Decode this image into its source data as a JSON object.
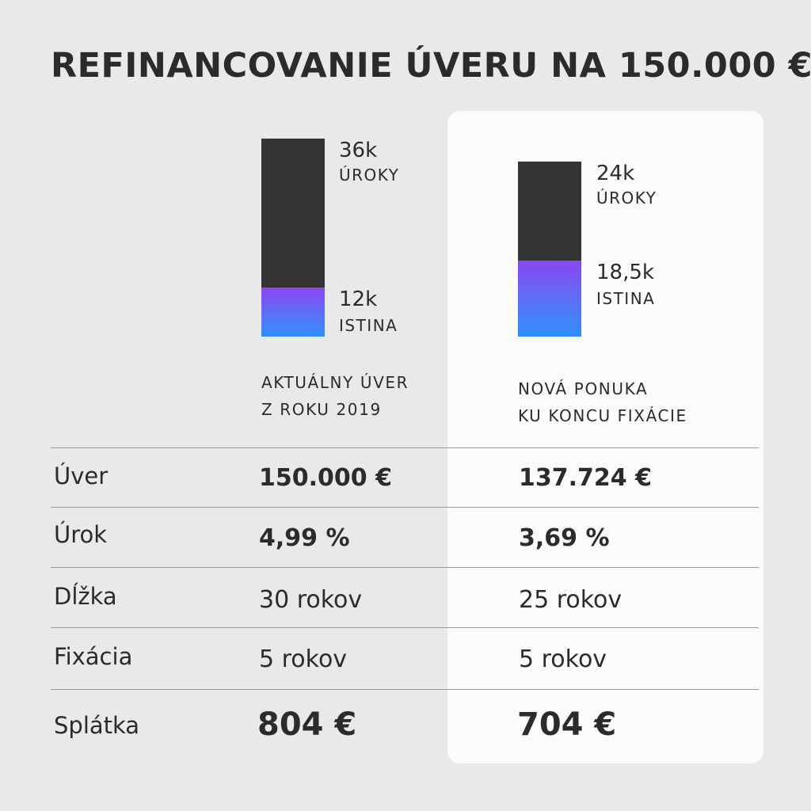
{
  "title": "REFINANCOVANIE ÚVERU NA 150.000 €",
  "chart_data": {
    "type": "bar",
    "stacked": true,
    "categories": [
      "AKTUÁLNY ÚVER Z ROKU 2019",
      "NOVÁ PONUKA KU KONCU FIXÁCIE"
    ],
    "series": [
      {
        "name": "ISTINA",
        "values": [
          12,
          18.5
        ],
        "labels": [
          "12k",
          "18,5k"
        ],
        "color": "#5a72f7"
      },
      {
        "name": "ÚROKY",
        "values": [
          36,
          24
        ],
        "labels": [
          "36k",
          "24k"
        ],
        "color": "#333234"
      }
    ]
  },
  "columns": [
    {
      "line1": "AKTUÁLNY ÚVER",
      "line2": "Z ROKU 2019"
    },
    {
      "line1": "NOVÁ PONUKA",
      "line2": "KU KONCU FIXÁCIE"
    }
  ],
  "table": {
    "rows": [
      {
        "label": "Úver",
        "values": [
          "150.000 €",
          "137.724 €"
        ]
      },
      {
        "label": "Úrok",
        "values": [
          "4,99 %",
          "3,69 %"
        ]
      },
      {
        "label": "Dĺžka",
        "values": [
          "30 rokov",
          "25 rokov"
        ]
      },
      {
        "label": "Fixácia",
        "values": [
          "5 rokov",
          "5 rokov"
        ]
      },
      {
        "label": "Splátka",
        "values": [
          "804 €",
          "704 €"
        ]
      }
    ]
  }
}
